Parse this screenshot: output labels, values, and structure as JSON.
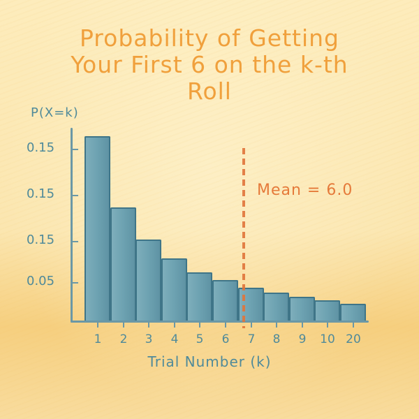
{
  "chart": {
    "title_lines": [
      "Probability of Getting",
      "Your First 6 on the k-th",
      "Roll"
    ],
    "ylabel": "P(X=k)",
    "xlabel": "Trial Number (k)",
    "yticks": [
      "0.15",
      "0.15",
      "0.15",
      "0.05"
    ],
    "xticks": [
      "1",
      "2",
      "3",
      "4",
      "5",
      "6",
      "7",
      "8",
      "9",
      "10",
      "20"
    ],
    "mean_label": "Mean = 6.0",
    "colors": {
      "title": "#f0a03c",
      "bars": "#6da2b1",
      "bar_outline": "#3f7588",
      "axis_text": "#4f8a9a",
      "mean_line": "#e0743a",
      "background": "#fbe6b0"
    }
  },
  "chart_data": {
    "type": "bar",
    "title": "Probability of Getting Your First 6 on the k-th Roll",
    "xlabel": "Trial Number (k)",
    "ylabel": "P(X=k)",
    "categories": [
      "1",
      "2",
      "3",
      "4",
      "5",
      "6",
      "7",
      "8",
      "9",
      "10",
      "20"
    ],
    "values": [
      0.167,
      0.103,
      0.074,
      0.057,
      0.044,
      0.037,
      0.03,
      0.026,
      0.022,
      0.019,
      0.016
    ],
    "ytick_labels": [
      "0.15",
      "0.15",
      "0.15",
      "0.05"
    ],
    "annotations": [
      {
        "type": "vertical-dashed-line",
        "x": 6.5,
        "label": "Mean = 6.0",
        "color": "#e0743a"
      }
    ],
    "grid": false,
    "legend": null,
    "style": "hand-drawn colored pencil"
  }
}
